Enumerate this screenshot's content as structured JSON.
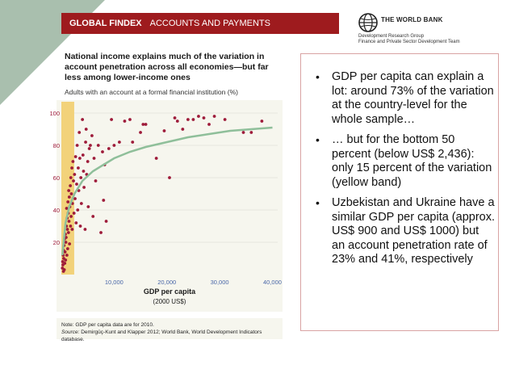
{
  "header": {
    "brand": "GLOBAL FINDEX",
    "section": "ACCOUNTS AND PAYMENTS"
  },
  "logo": {
    "name": "THE WORLD BANK",
    "line1": "Development Research Group",
    "line2": "Finance and Private Sector Development Team"
  },
  "chart_title": "National income explains much of the variation in account penetration across all economies—but far less among lower-income ones",
  "chart_subtitle": "Adults with an account at a formal financial institution (%)",
  "note": {
    "text": "Note: GDP per capita data are for 2010.",
    "source_label": "Source:",
    "source_text": "Demirgüç-Kunt and Klapper 2012; World Bank, World Development Indicators database."
  },
  "bullets": [
    "GDP per capita can explain a lot: around 73% of the variation at the country-level for the whole sample…",
    " … but for the bottom 50 percent (below US$ 2,436): only 15 percent of the variation (yellow band)",
    "Uzbekistan and Ukraine have a similar GDP per capita (approx. US$ 900 and US$ 1000) but an account penetration rate of 23% and 41%, respectively"
  ],
  "colors": {
    "header_bg": "#9e1b1e",
    "corner": "#a9bfae",
    "point": "#9e1b3a",
    "trend": "#8fbf9a",
    "band": "#f2d27a",
    "panel": "#f6f6ee"
  },
  "chart_data": {
    "type": "scatter",
    "xlabel": "GDP per capita",
    "xlabel_unit": "(2000 US$)",
    "ylabel": "",
    "xlim": [
      0,
      41000
    ],
    "ylim": [
      0,
      100
    ],
    "x_ticks": [
      "10,000",
      "20,000",
      "30,000",
      "40,000"
    ],
    "x_tick_values": [
      10000,
      20000,
      30000,
      40000
    ],
    "y_ticks": [
      "20",
      "40",
      "60",
      "80",
      "100"
    ],
    "y_tick_values": [
      20,
      40,
      60,
      80,
      100
    ],
    "grid": true,
    "band": {
      "x_from": 0,
      "x_to": 2436
    },
    "trend": {
      "x": [
        200,
        800,
        1500,
        2500,
        4000,
        6000,
        8000,
        10000,
        13000,
        16000,
        20000,
        24000,
        28000,
        32000,
        36000,
        40000
      ],
      "y": [
        12,
        32,
        42,
        50,
        58,
        64,
        68,
        72,
        76,
        79,
        82,
        85,
        87,
        89,
        90,
        91
      ]
    },
    "points": [
      [
        200,
        4
      ],
      [
        250,
        8
      ],
      [
        300,
        6
      ],
      [
        350,
        12
      ],
      [
        400,
        2
      ],
      [
        420,
        15
      ],
      [
        450,
        10
      ],
      [
        500,
        18
      ],
      [
        550,
        3
      ],
      [
        600,
        22
      ],
      [
        650,
        7
      ],
      [
        700,
        14
      ],
      [
        750,
        25
      ],
      [
        800,
        9
      ],
      [
        850,
        20
      ],
      [
        900,
        23
      ],
      [
        950,
        30
      ],
      [
        1000,
        41
      ],
      [
        1050,
        12
      ],
      [
        1100,
        35
      ],
      [
        1150,
        28
      ],
      [
        1200,
        16
      ],
      [
        1250,
        45
      ],
      [
        1300,
        38
      ],
      [
        1350,
        26
      ],
      [
        1400,
        52
      ],
      [
        1450,
        33
      ],
      [
        1500,
        48
      ],
      [
        1550,
        19
      ],
      [
        1600,
        42
      ],
      [
        1700,
        55
      ],
      [
        1750,
        30
      ],
      [
        1800,
        60
      ],
      [
        1850,
        36
      ],
      [
        1900,
        50
      ],
      [
        2000,
        66
      ],
      [
        2050,
        28
      ],
      [
        2100,
        44
      ],
      [
        2200,
        70
      ],
      [
        2300,
        58
      ],
      [
        2400,
        38
      ],
      [
        2500,
        62
      ],
      [
        2600,
        47
      ],
      [
        2700,
        73
      ],
      [
        2800,
        32
      ],
      [
        2900,
        56
      ],
      [
        3000,
        80
      ],
      [
        3100,
        40
      ],
      [
        3200,
        66
      ],
      [
        3300,
        52
      ],
      [
        3400,
        88
      ],
      [
        3500,
        72
      ],
      [
        3600,
        30
      ],
      [
        3700,
        60
      ],
      [
        3800,
        44
      ],
      [
        4000,
        96
      ],
      [
        4100,
        74
      ],
      [
        4200,
        64
      ],
      [
        4300,
        54
      ],
      [
        4500,
        28
      ],
      [
        4600,
        82
      ],
      [
        4700,
        90
      ],
      [
        4800,
        62
      ],
      [
        5000,
        70
      ],
      [
        5100,
        42
      ],
      [
        5300,
        78
      ],
      [
        5500,
        80
      ],
      [
        5800,
        86
      ],
      [
        6000,
        36
      ],
      [
        6200,
        72
      ],
      [
        6500,
        58
      ],
      [
        7000,
        80
      ],
      [
        7500,
        26
      ],
      [
        7800,
        76
      ],
      [
        8000,
        46
      ],
      [
        8200,
        68
      ],
      [
        8500,
        33
      ],
      [
        9000,
        78
      ],
      [
        9500,
        96
      ],
      [
        10000,
        80
      ],
      [
        11000,
        82
      ],
      [
        12000,
        95
      ],
      [
        13000,
        96
      ],
      [
        13500,
        82
      ],
      [
        15000,
        88
      ],
      [
        15500,
        93
      ],
      [
        16000,
        93
      ],
      [
        18000,
        72
      ],
      [
        19500,
        89
      ],
      [
        20500,
        60
      ],
      [
        21500,
        97
      ],
      [
        22000,
        95
      ],
      [
        23000,
        90
      ],
      [
        24000,
        96
      ],
      [
        25000,
        96
      ],
      [
        26000,
        98
      ],
      [
        27000,
        97
      ],
      [
        28000,
        93
      ],
      [
        29000,
        98
      ],
      [
        31000,
        96
      ],
      [
        34500,
        88
      ],
      [
        36000,
        88
      ],
      [
        38000,
        95
      ]
    ]
  }
}
